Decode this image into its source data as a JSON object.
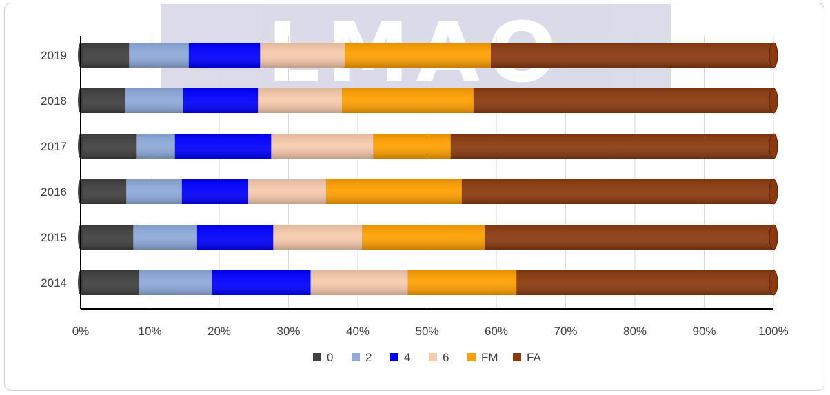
{
  "chart_data": {
    "type": "bar",
    "orientation": "horizontal",
    "stacked": "percent",
    "categories": [
      "2014",
      "2015",
      "2016",
      "2017",
      "2018",
      "2019"
    ],
    "series": [
      {
        "name": "0",
        "color": "#404040",
        "values": [
          8.4,
          7.6,
          6.6,
          8.1,
          6.4,
          7.0
        ]
      },
      {
        "name": "2",
        "color": "#8eaadb",
        "values": [
          10.5,
          9.2,
          8.0,
          5.5,
          8.4,
          8.6
        ]
      },
      {
        "name": "4",
        "color": "#0000ff",
        "values": [
          14.3,
          11.0,
          9.6,
          13.9,
          10.8,
          10.3
        ]
      },
      {
        "name": "6",
        "color": "#f8cbad",
        "values": [
          14.0,
          12.8,
          11.2,
          14.7,
          12.1,
          12.2
        ]
      },
      {
        "name": "FM",
        "color": "#ffa000",
        "values": [
          15.7,
          17.7,
          19.6,
          11.2,
          19.0,
          21.1
        ]
      },
      {
        "name": "FA",
        "color": "#8b3a0f",
        "values": [
          37.1,
          41.7,
          45.0,
          46.6,
          43.3,
          40.8
        ]
      }
    ],
    "xticks": [
      "0%",
      "10%",
      "20%",
      "30%",
      "40%",
      "50%",
      "60%",
      "70%",
      "80%",
      "90%",
      "100%"
    ],
    "xlim": [
      0,
      100
    ],
    "grid": "vertical",
    "legend": "bottom",
    "title": "",
    "xlabel": "",
    "ylabel": "",
    "watermark": "LMAO"
  }
}
